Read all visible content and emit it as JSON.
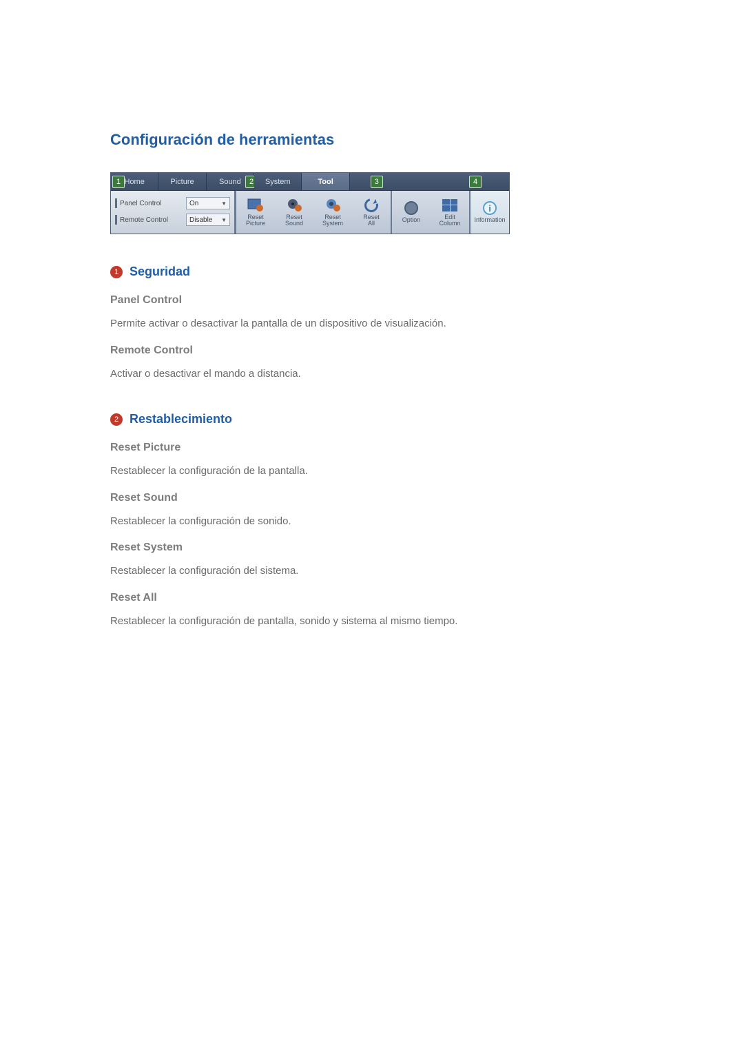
{
  "page_title": "Configuración de herramientas",
  "callouts": {
    "c1": "1",
    "c2": "2",
    "c3": "3",
    "c4": "4"
  },
  "tabs": {
    "home": "Home",
    "picture": "Picture",
    "sound": "Sound",
    "system": "System",
    "tool": "Tool"
  },
  "controls": {
    "panel_label": "Panel Control",
    "panel_value": "On",
    "remote_label": "Remote Control",
    "remote_value": "Disable"
  },
  "icons": {
    "reset_picture": "Reset\nPicture",
    "reset_sound": "Reset\nSound",
    "reset_system": "Reset\nSystem",
    "reset_all": "Reset\nAll",
    "option": "Option",
    "edit_column": "Edit\nColumn",
    "information": "Information"
  },
  "sections": {
    "seguridad": {
      "num": "1",
      "title": "Seguridad",
      "panel_control_h": "Panel Control",
      "panel_control_p": "Permite activar o desactivar la pantalla de un dispositivo de visualización.",
      "remote_control_h": "Remote Control",
      "remote_control_p": "Activar o desactivar el mando a distancia."
    },
    "restablecimiento": {
      "num": "2",
      "title": "Restablecimiento",
      "reset_picture_h": "Reset Picture",
      "reset_picture_p": "Restablecer la configuración de la pantalla.",
      "reset_sound_h": "Reset Sound",
      "reset_sound_p": "Restablecer la configuración de sonido.",
      "reset_system_h": "Reset System",
      "reset_system_p": "Restablecer la configuración del sistema.",
      "reset_all_h": "Reset All",
      "reset_all_p": "Restablecer la configuración de pantalla, sonido y sistema al mismo tiempo."
    }
  },
  "colors": {
    "heading": "#1f5ea6",
    "badge": "#c0392b",
    "subhead": "#7d7d7d",
    "body": "#6a6a6a"
  }
}
